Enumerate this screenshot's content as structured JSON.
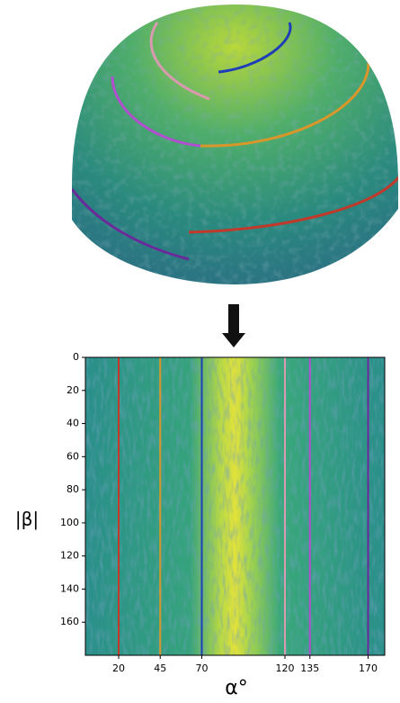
{
  "chart_data": {
    "type": "heatmap",
    "xlabel": "α°",
    "ylabel": "|β|",
    "xlim": [
      0,
      180
    ],
    "ylim": [
      0,
      180
    ],
    "y_inverted": true,
    "xticks": [
      20,
      45,
      70,
      120,
      135,
      170
    ],
    "yticks": [
      0,
      20,
      40,
      60,
      80,
      100,
      120,
      140,
      160
    ],
    "vlines": [
      {
        "x": 20,
        "color": "#c0392b"
      },
      {
        "x": 45,
        "color": "#d9962b"
      },
      {
        "x": 70,
        "color": "#1f3fb8"
      },
      {
        "x": 120,
        "color": "#d99ab0"
      },
      {
        "x": 135,
        "color": "#b14fd0"
      },
      {
        "x": 170,
        "color": "#6a2a9a"
      }
    ]
  }
}
